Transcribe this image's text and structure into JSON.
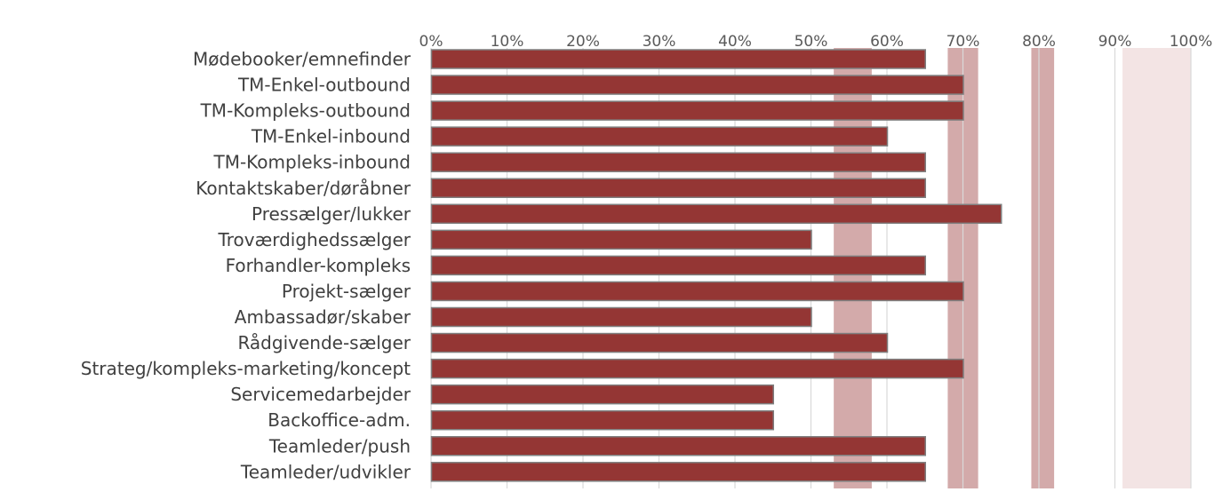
{
  "chart_data": {
    "type": "bar",
    "orientation": "horizontal",
    "categories": [
      "Mødebooker/emnefinder",
      "TM-Enkel-outbound",
      "TM-Kompleks-outbound",
      "TM-Enkel-inbound",
      "TM-Kompleks-inbound",
      "Kontaktskaber/døråbner",
      "Pressælger/lukker",
      "Troværdighedssælger",
      "Forhandler-kompleks",
      "Projekt-sælger",
      "Ambassadør/skaber",
      "Rådgivende-sælger",
      "Strateg/kompleks-marketing/koncept",
      "Servicemedarbejder",
      "Backoffice-adm.",
      "Teamleder/push",
      "Teamleder/udvikler"
    ],
    "values": [
      65,
      70,
      70,
      60,
      65,
      65,
      75,
      50,
      65,
      70,
      50,
      60,
      70,
      45,
      45,
      65,
      65
    ],
    "xlim": [
      0,
      100
    ],
    "x_ticks": [
      0,
      10,
      20,
      30,
      40,
      50,
      60,
      70,
      80,
      90,
      100
    ],
    "x_tick_labels": [
      "0%",
      "10%",
      "20%",
      "30%",
      "40%",
      "50%",
      "60%",
      "70%",
      "80%",
      "90%",
      "100%"
    ],
    "x_axis_position": "top",
    "grid": true,
    "bands": [
      {
        "from": 53,
        "to": 58,
        "color": "#d3aaaa"
      },
      {
        "from": 68,
        "to": 72,
        "color": "#d3aaaa"
      },
      {
        "from": 79,
        "to": 82,
        "color": "#d3aaaa"
      },
      {
        "from": 91,
        "to": 100,
        "color": "#f3e4e4"
      }
    ],
    "colors": {
      "bar_fill": "#943634",
      "bar_stroke": "#7f7f7f",
      "gridline": "#d9d9d9"
    },
    "title": "",
    "xlabel": "",
    "ylabel": ""
  }
}
